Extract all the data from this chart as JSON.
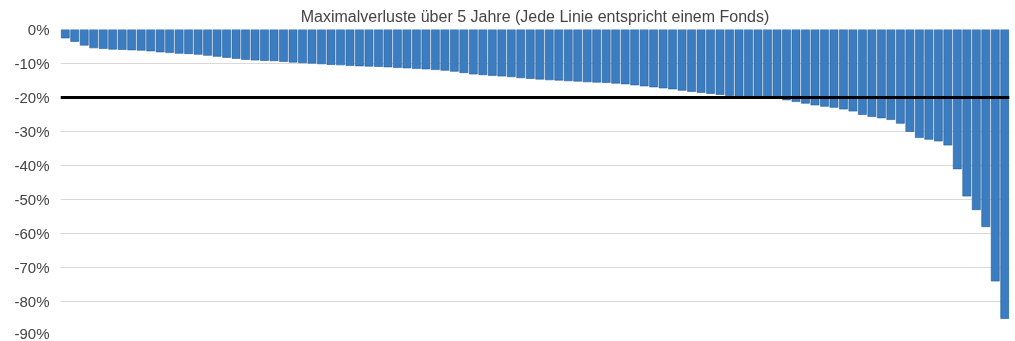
{
  "chart_data": {
    "type": "bar",
    "title": "Maximalverluste über 5 Jahre (Jede Linie entspricht einem Fonds)",
    "categories": [
      null,
      null,
      null,
      null,
      null,
      null,
      null,
      null,
      null,
      null,
      null,
      null,
      null,
      null,
      null,
      null,
      null,
      null,
      null,
      null,
      null,
      null,
      null,
      null,
      null,
      null,
      null,
      null,
      null,
      null,
      null,
      null,
      null,
      null,
      null,
      null,
      null,
      null,
      null,
      null,
      null,
      null,
      null,
      null,
      null,
      null,
      null,
      null,
      null,
      null,
      null,
      null,
      null,
      null,
      null,
      null,
      null,
      null,
      null,
      null,
      null,
      null,
      null,
      null,
      null,
      null,
      null,
      null,
      null,
      null,
      null,
      null,
      null,
      null,
      null,
      null,
      null,
      null,
      null,
      null,
      null,
      null,
      null,
      null,
      null,
      null,
      null,
      null,
      null,
      null,
      null,
      null,
      null,
      null,
      null,
      null,
      null,
      null,
      null,
      null
    ],
    "values": [
      -2.5,
      -3.5,
      -4.6,
      -5.4,
      -5.6,
      -5.8,
      -5.9,
      -6.0,
      -6.1,
      -6.3,
      -6.6,
      -6.8,
      -7.0,
      -7.1,
      -7.3,
      -7.6,
      -7.9,
      -8.2,
      -8.5,
      -8.8,
      -9.0,
      -9.1,
      -9.2,
      -9.4,
      -9.6,
      -9.8,
      -9.9,
      -10.1,
      -10.3,
      -10.4,
      -10.6,
      -10.7,
      -10.8,
      -10.9,
      -11.0,
      -11.2,
      -11.3,
      -11.5,
      -11.6,
      -11.8,
      -12.0,
      -12.3,
      -12.7,
      -13.1,
      -13.3,
      -13.5,
      -13.7,
      -13.9,
      -14.2,
      -14.4,
      -14.6,
      -14.8,
      -14.9,
      -15.1,
      -15.2,
      -15.4,
      -15.5,
      -15.6,
      -15.8,
      -16.0,
      -16.3,
      -16.6,
      -16.9,
      -17.2,
      -17.5,
      -17.9,
      -18.2,
      -18.5,
      -18.8,
      -19.1,
      -19.4,
      -19.7,
      -19.9,
      -20.0,
      -20.2,
      -20.3,
      -20.7,
      -21.2,
      -21.7,
      -22.2,
      -22.6,
      -22.9,
      -23.4,
      -24.0,
      -25.0,
      -25.6,
      -26.0,
      -26.5,
      -27.6,
      -30.0,
      -31.8,
      -32.3,
      -32.8,
      -34.0,
      -41.0,
      -49.0,
      -53.0,
      -58.0,
      -74.0,
      -85.0
    ],
    "color": "#3b7dc0",
    "ylim": [
      -90,
      0
    ],
    "yticks": [
      {
        "value": 0,
        "label": "0%"
      },
      {
        "value": -10,
        "label": "-10%"
      },
      {
        "value": -20,
        "label": "-20%"
      },
      {
        "value": -30,
        "label": "-30%"
      },
      {
        "value": -40,
        "label": "-40%"
      },
      {
        "value": -50,
        "label": "-50%"
      },
      {
        "value": -60,
        "label": "-60%"
      },
      {
        "value": -70,
        "label": "-70%"
      },
      {
        "value": -80,
        "label": "-80%"
      },
      {
        "value": -90,
        "label": "-90%"
      }
    ],
    "grid": "y",
    "ref_lines": [
      {
        "axis": "y",
        "value": -20,
        "label": null,
        "color": "#000000"
      }
    ]
  }
}
